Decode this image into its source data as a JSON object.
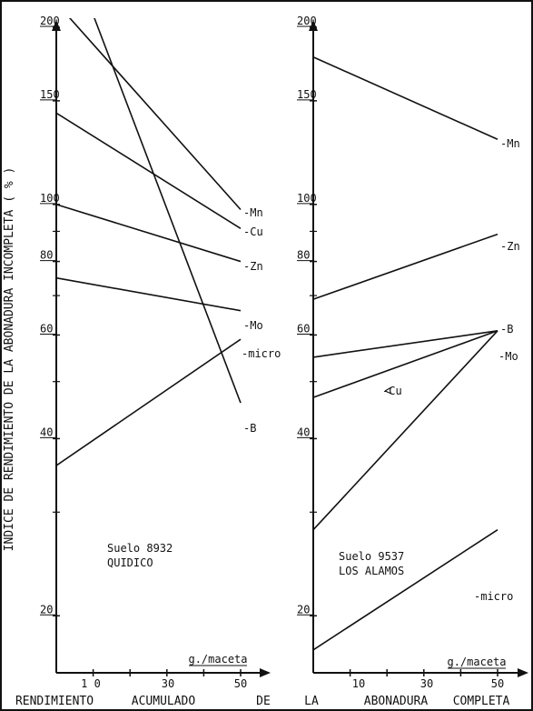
{
  "figure": {
    "y_axis_title": "INDICE   DE   RENDIMIENTO   DE   LA   ABONADURA   INCOMPLETA   ( % )",
    "x_axis_title_words": [
      "RENDIMIENTO",
      "ACUMULADO",
      "DE",
      "LA",
      "ABONADURA",
      "COMPLETA"
    ],
    "colors": {
      "ink": "#111111",
      "background": "#ffffff"
    }
  },
  "chart_data": [
    {
      "type": "line",
      "title": "Suelo  8932",
      "subtitle": "QUIDICO",
      "xlabel": "g./maceta",
      "x_ticks": [
        "1 0",
        "30",
        "50"
      ],
      "y_ticks": [
        "20",
        "40",
        "60",
        "80",
        "100",
        "150",
        "200"
      ],
      "y_scale": "log",
      "ylim": [
        16,
        200
      ],
      "xlim": [
        0,
        55
      ],
      "series": [
        {
          "name": "-Mn",
          "x": [
            0,
            50
          ],
          "y": [
            220,
            98
          ]
        },
        {
          "name": "-Cu",
          "x": [
            0,
            50
          ],
          "y": [
            143,
            91
          ]
        },
        {
          "name": "-Zn",
          "x": [
            0,
            50
          ],
          "y": [
            100,
            80
          ]
        },
        {
          "name": "-Mo",
          "x": [
            0,
            50
          ],
          "y": [
            75,
            66
          ]
        },
        {
          "name": "-micro",
          "x": [
            0,
            50
          ],
          "y": [
            36,
            59
          ]
        },
        {
          "name": "-B",
          "x": [
            10,
            50
          ],
          "y": [
            210,
            46
          ]
        }
      ]
    },
    {
      "type": "line",
      "title": "Suelo  9537",
      "subtitle": "LOS  ALAMOS",
      "xlabel": "g./maceta",
      "x_ticks": [
        "10",
        "30",
        "50"
      ],
      "y_ticks": [
        "20",
        "40",
        "60",
        "80",
        "100",
        "150",
        "200"
      ],
      "y_scale": "log",
      "ylim": [
        16,
        200
      ],
      "xlim": [
        0,
        55
      ],
      "series": [
        {
          "name": "-Mn",
          "x": [
            0,
            50
          ],
          "y": [
            178,
            129
          ]
        },
        {
          "name": "-Zn",
          "x": [
            0,
            50
          ],
          "y": [
            69,
            89
          ]
        },
        {
          "name": "-B",
          "x": [
            0,
            50
          ],
          "y": [
            55,
            61
          ]
        },
        {
          "name": "-Mo",
          "x": [
            0,
            50
          ],
          "y": [
            28,
            61
          ]
        },
        {
          "name": "-Cu",
          "x": [
            0,
            50
          ],
          "y": [
            47,
            61
          ]
        },
        {
          "name": "-micro",
          "x": [
            0,
            50
          ],
          "y": [
            17.5,
            28
          ]
        }
      ]
    }
  ]
}
